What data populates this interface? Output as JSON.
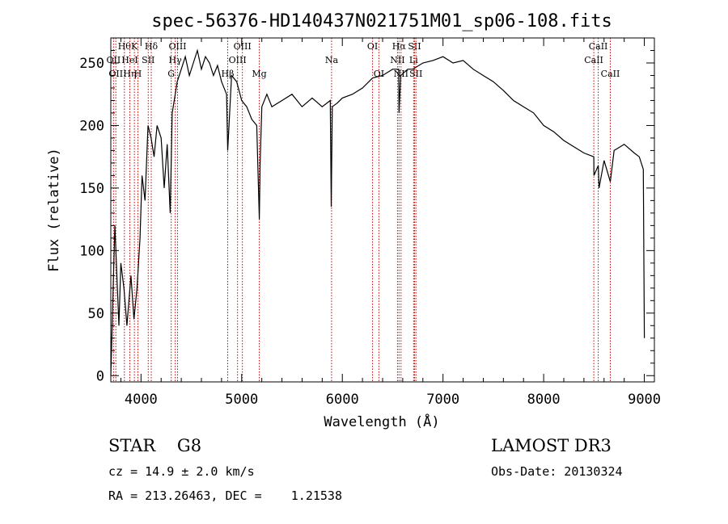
{
  "chart_data": {
    "type": "line",
    "title": "spec-56376-HD140437N021751M01_sp06-108.fits",
    "xlabel": "Wavelength (Å)",
    "ylabel": "Flux (relative)",
    "xlim": [
      3700,
      9100
    ],
    "ylim": [
      -5,
      270
    ],
    "xticks": [
      4000,
      5000,
      6000,
      7000,
      8000,
      9000
    ],
    "yticks": [
      0,
      50,
      100,
      150,
      200,
      250
    ],
    "grid": false,
    "series": [
      {
        "x": [
          3700,
          3720,
          3740,
          3760,
          3780,
          3800,
          3830,
          3860,
          3880,
          3900,
          3930,
          3960,
          3990,
          4010,
          4040,
          4070,
          4100,
          4130,
          4160,
          4200,
          4230,
          4260,
          4290,
          4310,
          4330,
          4360,
          4400,
          4440,
          4480,
          4520,
          4560,
          4600,
          4640,
          4680,
          4720,
          4760,
          4800,
          4850,
          4861,
          4900,
          4950,
          5000,
          5050,
          5100,
          5150,
          5175,
          5183,
          5200,
          5250,
          5300,
          5400,
          5500,
          5600,
          5700,
          5800,
          5880,
          5890,
          5900,
          5950,
          6000,
          6100,
          6200,
          6300,
          6400,
          6500,
          6560,
          6563,
          6580,
          6650,
          6700,
          6800,
          6900,
          7000,
          7100,
          7200,
          7300,
          7400,
          7500,
          7600,
          7700,
          7800,
          7900,
          8000,
          8100,
          8200,
          8300,
          8400,
          8498,
          8500,
          8542,
          8550,
          8600,
          8662,
          8700,
          8800,
          8900,
          8950,
          8990,
          9000
        ],
        "y": [
          0,
          60,
          120,
          80,
          40,
          90,
          70,
          40,
          60,
          80,
          45,
          70,
          110,
          160,
          140,
          200,
          190,
          175,
          200,
          190,
          150,
          185,
          130,
          210,
          220,
          235,
          245,
          255,
          240,
          250,
          260,
          245,
          255,
          250,
          240,
          248,
          235,
          225,
          180,
          240,
          235,
          220,
          215,
          205,
          200,
          125,
          170,
          215,
          225,
          215,
          220,
          225,
          215,
          222,
          215,
          220,
          135,
          215,
          218,
          222,
          225,
          230,
          238,
          240,
          245,
          245,
          210,
          240,
          245,
          245,
          250,
          252,
          255,
          250,
          252,
          245,
          240,
          235,
          228,
          220,
          215,
          210,
          200,
          195,
          188,
          183,
          178,
          175,
          160,
          168,
          150,
          172,
          155,
          180,
          185,
          178,
          175,
          165,
          30
        ]
      }
    ]
  },
  "lines": [
    {
      "wl": 3727,
      "label": "OII",
      "row": 2
    },
    {
      "wl": 3750,
      "label": "OII",
      "row": 3
    },
    {
      "wl": 3835,
      "label": "Hθ",
      "row": 1
    },
    {
      "wl": 3889,
      "label": "HeI",
      "row": 2
    },
    {
      "wl": 3889,
      "label": "Hη",
      "row": 3
    },
    {
      "wl": 3934,
      "label": "K",
      "row": 1
    },
    {
      "wl": 3969,
      "label": "H",
      "row": 3
    },
    {
      "wl": 4072,
      "label": "SII",
      "row": 2
    },
    {
      "wl": 4102,
      "label": "Hδ",
      "row": 1
    },
    {
      "wl": 4300,
      "label": "G",
      "row": 3
    },
    {
      "wl": 4340,
      "label": "Hγ",
      "row": 2
    },
    {
      "wl": 4363,
      "label": "OIII",
      "row": 1
    },
    {
      "wl": 4861,
      "label": "Hβ",
      "row": 3
    },
    {
      "wl": 4959,
      "label": "OIII",
      "row": 2
    },
    {
      "wl": 5007,
      "label": "OIII",
      "row": 1
    },
    {
      "wl": 5175,
      "label": "Mg",
      "row": 3
    },
    {
      "wl": 5893,
      "label": "Na",
      "row": 2
    },
    {
      "wl": 6300,
      "label": "OI",
      "row": 1
    },
    {
      "wl": 6363,
      "label": "OI",
      "row": 3
    },
    {
      "wl": 6548,
      "label": "NII",
      "row": 2
    },
    {
      "wl": 6563,
      "label": "Hα",
      "row": 1
    },
    {
      "wl": 6583,
      "label": "NII",
      "row": 3
    },
    {
      "wl": 6708,
      "label": "Li",
      "row": 2
    },
    {
      "wl": 6717,
      "label": "SII",
      "row": 1
    },
    {
      "wl": 6731,
      "label": "SII",
      "row": 3
    },
    {
      "wl": 8498,
      "label": "CaII",
      "row": 2
    },
    {
      "wl": 8542,
      "label": "CaII",
      "row": 1
    },
    {
      "wl": 8662,
      "label": "CaII",
      "row": 3
    }
  ],
  "info": {
    "class": "STAR    G8",
    "survey": "LAMOST DR3",
    "cz": "cz = 14.9 ± 2.0 km/s",
    "obsdate": "Obs-Date: 20130324",
    "radec": "RA = 213.26463, DEC =    1.21538"
  },
  "colors": {
    "spectrum": "#000000",
    "line_marker": "#cc0000",
    "axes": "#000000"
  }
}
